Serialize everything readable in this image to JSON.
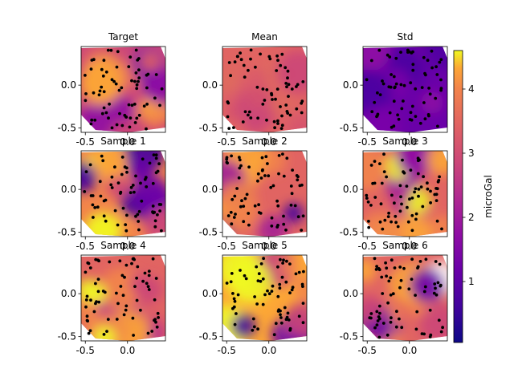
{
  "chart_data": {
    "type": "heatmap",
    "description_grid": "3x3 grid of filled-contour panels with scattered sample points and a shared colorbar",
    "panels": [
      {
        "id": "target",
        "title": "Target",
        "x_ticks": [
          "-0.5",
          "0.0"
        ],
        "y_ticks": [
          "0.0",
          "-0.5"
        ]
      },
      {
        "id": "mean",
        "title": "Mean",
        "x_ticks": [
          "-0.5",
          "0.0"
        ],
        "y_ticks": [
          "0.0",
          "-0.5"
        ]
      },
      {
        "id": "std",
        "title": "Std",
        "x_ticks": [
          "-0.5",
          "0.0"
        ],
        "y_ticks": [
          "0.0",
          "-0.5"
        ]
      },
      {
        "id": "sample1",
        "title": "Sample 1",
        "x_ticks": [
          "-0.5",
          "0.0"
        ],
        "y_ticks": [
          "0.0",
          "-0.5"
        ]
      },
      {
        "id": "sample2",
        "title": "Sample 2",
        "x_ticks": [
          "-0.5",
          "0.0"
        ],
        "y_ticks": [
          "0.0",
          "-0.5"
        ]
      },
      {
        "id": "sample3",
        "title": "Sample 3",
        "x_ticks": [
          "-0.5",
          "0.0"
        ],
        "y_ticks": [
          "0.0",
          "-0.5"
        ]
      },
      {
        "id": "sample4",
        "title": "Sample 4",
        "x_ticks": [
          "-0.5",
          "0.0"
        ],
        "y_ticks": [
          "0.0",
          "-0.5"
        ]
      },
      {
        "id": "sample5",
        "title": "Sample 5",
        "x_ticks": [
          "-0.5",
          "0.0"
        ],
        "y_ticks": [
          "0.0",
          "-0.5"
        ]
      },
      {
        "id": "sample6",
        "title": "Sample 6",
        "x_ticks": [
          "-0.5",
          "0.0"
        ],
        "y_ticks": [
          "0.0",
          "-0.5"
        ]
      }
    ],
    "x_range": [
      -0.55,
      0.45
    ],
    "y_range": [
      -0.55,
      0.45
    ],
    "colorbar": {
      "label": "microGal",
      "colormap": "plasma",
      "range": [
        0.05,
        4.6
      ],
      "ticks": [
        1,
        2,
        3,
        4
      ],
      "tick_labels": [
        "1",
        "2",
        "3",
        "4"
      ]
    }
  }
}
